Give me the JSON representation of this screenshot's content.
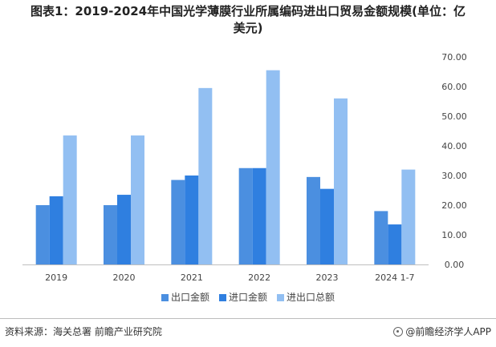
{
  "page": {
    "title_line1": "图表1：2019-2024年中国光学薄膜行业所属编码进出口贸易金额规模(单位：亿",
    "title_line2": "美元)"
  },
  "chart_data": {
    "type": "bar",
    "categories": [
      "2019",
      "2020",
      "2021",
      "2022",
      "2023",
      "2024 1-7"
    ],
    "series": [
      {
        "name": "出口金额",
        "color": "#4b8fe0",
        "values": [
          20.0,
          20.0,
          28.5,
          32.5,
          29.5,
          18.0
        ]
      },
      {
        "name": "进口金额",
        "color": "#2f7fe0",
        "values": [
          23.0,
          23.5,
          30.0,
          32.5,
          25.5,
          13.5
        ]
      },
      {
        "name": "进出口总额",
        "color": "#92bff2",
        "values": [
          43.5,
          43.5,
          59.5,
          65.5,
          56.0,
          32.0
        ]
      }
    ],
    "y_ticks": [
      "0.00",
      "10.00",
      "20.00",
      "30.00",
      "40.00",
      "50.00",
      "60.00",
      "70.00"
    ],
    "ylim": [
      0,
      70
    ],
    "axis_side": "right",
    "grid": false,
    "legend_position": "bottom"
  },
  "footer": {
    "source": "资料来源：海关总署 前瞻产业研究院",
    "brand": "@前瞻经济学人APP"
  }
}
